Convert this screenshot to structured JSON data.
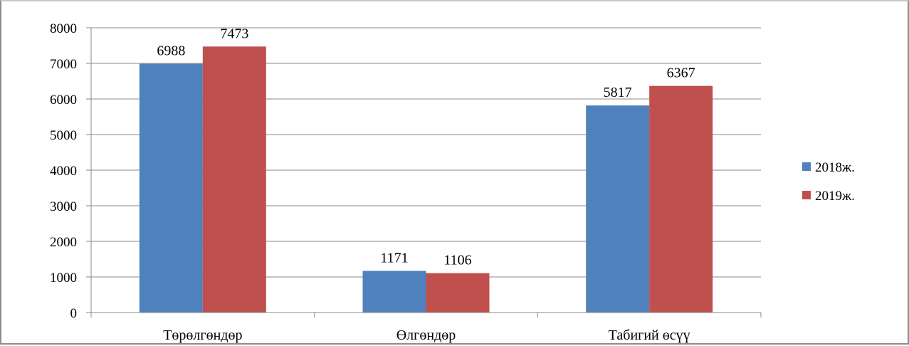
{
  "chart_data": {
    "type": "bar",
    "title": "",
    "xlabel": "",
    "ylabel": "",
    "categories": [
      "Төрөлгөндөр",
      "Өлгөндөр",
      "Табигий өсүү"
    ],
    "series": [
      {
        "name": "2018ж.",
        "color": "#4f81bd",
        "values": [
          6988,
          1171,
          5817
        ]
      },
      {
        "name": "2019ж.",
        "color": "#c0504d",
        "values": [
          7473,
          1106,
          6367
        ]
      }
    ],
    "ylim": [
      0,
      8000
    ],
    "yticks": [
      "0",
      "1000",
      "2000",
      "3000",
      "4000",
      "5000",
      "6000",
      "7000",
      "8000"
    ],
    "grid": true,
    "legend_position": "right"
  }
}
